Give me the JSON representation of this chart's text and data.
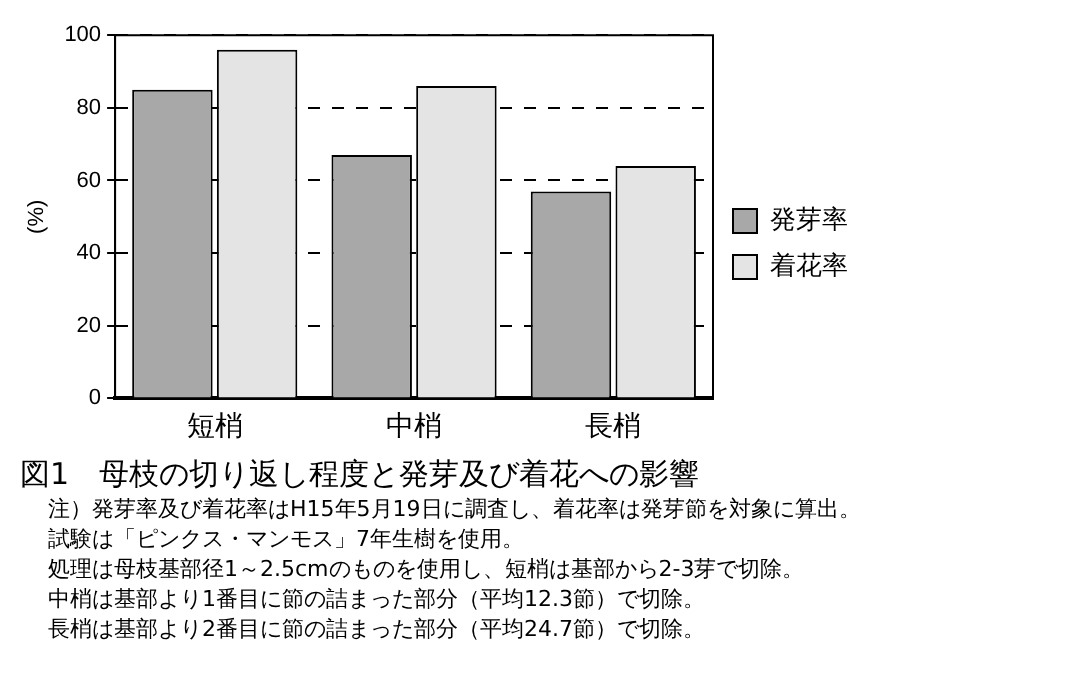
{
  "chart_data": {
    "type": "bar",
    "title": "図1　母枝の切り返し程度と発芽及び着花への影響",
    "ylabel": "(%)",
    "categories": [
      "短梢",
      "中梢",
      "長梢"
    ],
    "series": [
      {
        "name": "発芽率",
        "color": "#a8a8a8",
        "values": [
          85,
          67,
          57
        ]
      },
      {
        "name": "着花率",
        "color": "#e4e4e4",
        "values": [
          96,
          86,
          64
        ]
      }
    ],
    "ylim": [
      0,
      100
    ],
    "yticks": [
      0,
      20,
      40,
      60,
      80,
      100
    ],
    "grid": "y",
    "legend": "right",
    "annotations": [
      "注）発芽率及び着花率はH15年5月19日に調査し、着花率は発芽節を対象に算出。",
      "試験は「ピンクス・マンモス」7年生樹を使用。",
      "処理は母枝基部径1～2.5cmのものを使用し、短梢は基部から2-3芽で切除。",
      "中梢は基部より1番目に節の詰まった部分（平均12.3節）で切除。",
      "長梢は基部より2番目に節の詰まった部分（平均24.7節）で切除。"
    ]
  }
}
